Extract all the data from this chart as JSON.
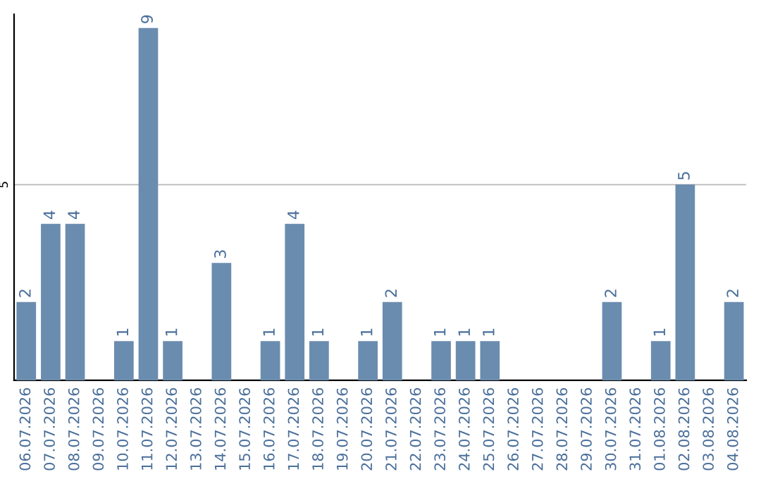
{
  "chart_data": {
    "type": "bar",
    "categories": [
      "06.07.2026",
      "07.07.2026",
      "08.07.2026",
      "09.07.2026",
      "10.07.2026",
      "11.07.2026",
      "12.07.2026",
      "13.07.2026",
      "14.07.2026",
      "15.07.2026",
      "16.07.2026",
      "17.07.2026",
      "18.07.2026",
      "19.07.2026",
      "20.07.2026",
      "21.07.2026",
      "22.07.2026",
      "23.07.2026",
      "24.07.2026",
      "25.07.2026",
      "26.07.2026",
      "27.07.2026",
      "28.07.2026",
      "29.07.2026",
      "30.07.2026",
      "31.07.2026",
      "01.08.2026",
      "02.08.2026",
      "03.08.2026",
      "04.08.2026"
    ],
    "values": [
      2,
      4,
      4,
      0,
      1,
      9,
      1,
      0,
      3,
      0,
      1,
      4,
      1,
      0,
      1,
      2,
      0,
      1,
      1,
      1,
      0,
      0,
      0,
      0,
      2,
      0,
      1,
      5,
      0,
      2
    ],
    "value_labels": [
      "2",
      "4",
      "4",
      null,
      "1",
      "9",
      "1",
      null,
      "3",
      null,
      "1",
      "4",
      "1",
      null,
      "1",
      "2",
      null,
      "1",
      "1",
      "1",
      null,
      null,
      null,
      null,
      "2",
      null,
      "1",
      "5",
      null,
      "2"
    ],
    "color": "#6a8caf",
    "ylim": [
      0,
      9.35
    ],
    "yticks": [
      5
    ],
    "grid": "y",
    "legend": false
  }
}
